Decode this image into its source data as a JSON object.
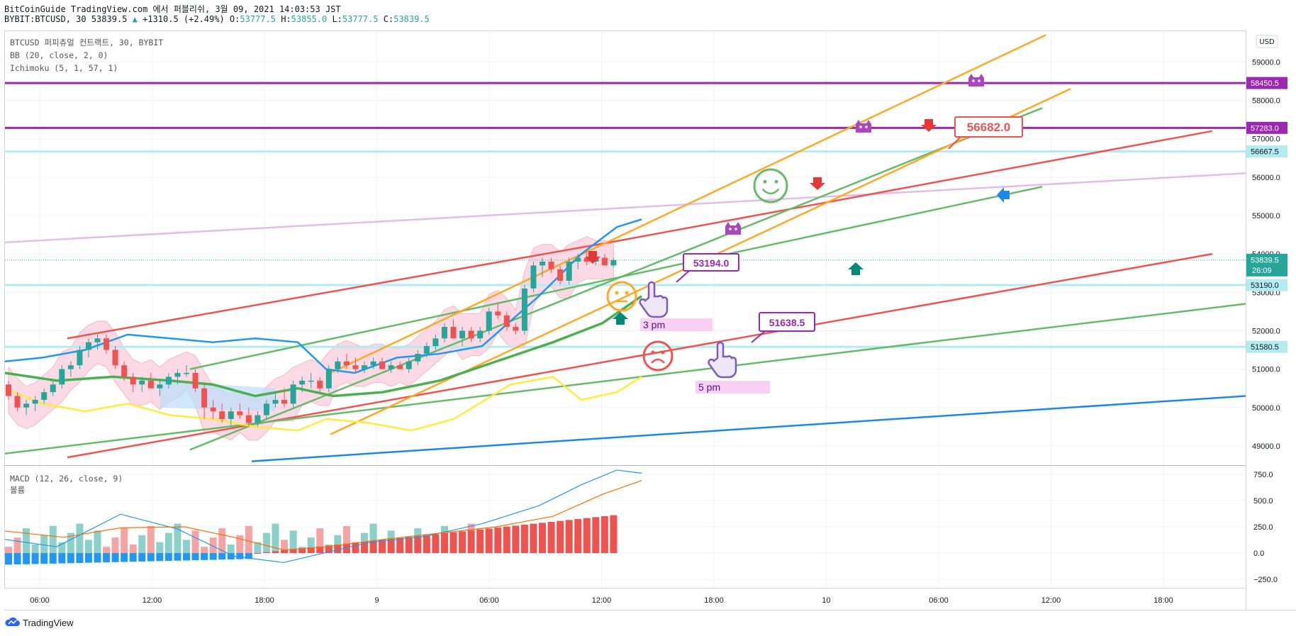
{
  "header": {
    "line1": "BitCoinGuide TradingView.com 에서 퍼블리쉬, 3월 09, 2021 14:03:53 JST",
    "line2_symbol": "BYBIT:BTCUSD, 30 53839.5",
    "line2_change": "+1310.5 (+2.49%)",
    "line2_ohlc": [
      {
        "k": "O:",
        "v": "53777.5"
      },
      {
        "k": "H:",
        "v": "53855.0"
      },
      {
        "k": "L:",
        "v": "53777.5"
      },
      {
        "k": "C:",
        "v": "53839.5"
      }
    ]
  },
  "legend": {
    "symbol": "BTCUSD 퍼피츄얼 컨트랙트, 30, BYBIT",
    "bb": "BB (20, close, 2, 0)",
    "ichimoku": "Ichimoku (5, 1, 57, 1)",
    "macd": "MACD (12, 26, close, 9)",
    "volume": "볼륨"
  },
  "currency": "USD",
  "brand": "TradingView",
  "colors": {
    "up": "#26a69a",
    "down": "#ef5350",
    "purple": "#9c27b0",
    "cyan": "#b2ebf2",
    "bb": "#2196f3",
    "orange": "#ffa726",
    "green": "#66bb6a",
    "red": "#ef5350",
    "pink": "#e1bee7",
    "blueTrend": "#1e88e5"
  },
  "chart_data": {
    "type": "line",
    "y_axis_ticks": [
      "59000.0",
      "58000.0",
      "57000.0",
      "56000.0",
      "55000.0",
      "54000.0",
      "53000.0",
      "52000.0",
      "51000.0",
      "50000.0",
      "49000.0"
    ],
    "ylim": [
      48500,
      59800
    ],
    "x_axis_ticks": [
      "06:00",
      "12:00",
      "18:00",
      "9",
      "06:00",
      "12:00",
      "18:00",
      "10",
      "06:00",
      "12:00",
      "18:00"
    ],
    "macd_ticks": [
      "750.0",
      "500.0",
      "250.0",
      "0.0",
      "−250.0"
    ],
    "macd_ylim": [
      -330,
      830
    ],
    "price_labels": [
      {
        "text": "58450.5",
        "value": 58450.5,
        "color": "#9c27b0"
      },
      {
        "text": "57283.0",
        "value": 57283.0,
        "color": "#9c27b0"
      },
      {
        "text": "56667.5",
        "value": 56667.5,
        "color": "#b2ebf2",
        "textColor": "#131722"
      },
      {
        "text": "53839.5",
        "value": 53839.5,
        "color": "#26a69a",
        "sub": "26:09"
      },
      {
        "text": "53190.0",
        "value": 53190.0,
        "color": "#b2ebf2",
        "textColor": "#131722"
      },
      {
        "text": "51580.5",
        "value": 51580.5,
        "color": "#b2ebf2",
        "textColor": "#131722"
      }
    ],
    "callouts": [
      {
        "text": "56682.0",
        "value": 56682.0,
        "color": "#ef5350"
      },
      {
        "text": "53194.0",
        "value": 53194.0,
        "color": "#9c27b0"
      },
      {
        "text": "51638.5",
        "value": 51638.5,
        "color": "#9c27b0"
      }
    ],
    "time_notes": [
      "3 pm",
      "5 pm"
    ],
    "candles_ohlc": [
      [
        50600,
        50700,
        50200,
        50300
      ],
      [
        50300,
        50400,
        49900,
        50000
      ],
      [
        50000,
        50200,
        49800,
        50100
      ],
      [
        50100,
        50300,
        49900,
        50200
      ],
      [
        50200,
        50500,
        50100,
        50400
      ],
      [
        50400,
        50700,
        50300,
        50600
      ],
      [
        50600,
        51100,
        50500,
        51000
      ],
      [
        51000,
        51200,
        50800,
        51100
      ],
      [
        51100,
        51600,
        51000,
        51500
      ],
      [
        51500,
        51800,
        51300,
        51700
      ],
      [
        51700,
        51900,
        51500,
        51800
      ],
      [
        51800,
        51900,
        51400,
        51500
      ],
      [
        51500,
        51600,
        51000,
        51100
      ],
      [
        51100,
        51200,
        50700,
        50800
      ],
      [
        50800,
        50900,
        50400,
        50600
      ],
      [
        50600,
        50800,
        50400,
        50700
      ],
      [
        50700,
        50900,
        50500,
        50500
      ],
      [
        50500,
        50700,
        50300,
        50600
      ],
      [
        50600,
        50900,
        50500,
        50800
      ],
      [
        50800,
        51000,
        50600,
        50900
      ],
      [
        50900,
        51100,
        50800,
        50900
      ],
      [
        50900,
        51000,
        50400,
        50500
      ],
      [
        50500,
        50600,
        49700,
        50000
      ],
      [
        50000,
        50200,
        49700,
        49900
      ],
      [
        49900,
        50100,
        49600,
        49700
      ],
      [
        49700,
        50000,
        49500,
        49900
      ],
      [
        49900,
        50100,
        49700,
        49800
      ],
      [
        49800,
        50000,
        49500,
        49600
      ],
      [
        49600,
        49900,
        49500,
        49800
      ],
      [
        49800,
        50200,
        49700,
        50100
      ],
      [
        50100,
        50400,
        50000,
        50200
      ],
      [
        50200,
        50500,
        50000,
        50100
      ],
      [
        50100,
        50700,
        50000,
        50600
      ],
      [
        50600,
        50800,
        50400,
        50700
      ],
      [
        50700,
        50900,
        50500,
        50700
      ],
      [
        50700,
        50800,
        50400,
        50500
      ],
      [
        50500,
        51100,
        50400,
        51000
      ],
      [
        51000,
        51300,
        50900,
        51200
      ],
      [
        51200,
        51400,
        51000,
        51100
      ],
      [
        51100,
        51300,
        50900,
        51000
      ],
      [
        51000,
        51200,
        50900,
        51100
      ],
      [
        51100,
        51300,
        51000,
        51200
      ],
      [
        51200,
        51300,
        51000,
        51000
      ],
      [
        51000,
        51200,
        50900,
        51100
      ],
      [
        51100,
        51200,
        51000,
        51000
      ],
      [
        51000,
        51300,
        50900,
        51200
      ],
      [
        51200,
        51500,
        51100,
        51400
      ],
      [
        51400,
        51700,
        51300,
        51600
      ],
      [
        51600,
        51900,
        51500,
        51800
      ],
      [
        51800,
        52200,
        51700,
        52100
      ],
      [
        52100,
        52300,
        51900,
        51800
      ],
      [
        51800,
        52100,
        51600,
        52000
      ],
      [
        52000,
        52100,
        51700,
        51800
      ],
      [
        51800,
        52100,
        51700,
        52000
      ],
      [
        52000,
        52600,
        51900,
        52500
      ],
      [
        52500,
        52700,
        52300,
        52400
      ],
      [
        52400,
        52500,
        52000,
        52100
      ],
      [
        52100,
        52200,
        51900,
        52000
      ],
      [
        52000,
        53200,
        51900,
        53100
      ],
      [
        53100,
        53800,
        53000,
        53700
      ],
      [
        53700,
        53900,
        53400,
        53800
      ],
      [
        53800,
        53900,
        53500,
        53600
      ],
      [
        53600,
        53700,
        53200,
        53300
      ],
      [
        53300,
        53900,
        53200,
        53800
      ],
      [
        53800,
        54000,
        53600,
        53900
      ],
      [
        53900,
        54100,
        53700,
        53800
      ],
      [
        53800,
        54000,
        53700,
        53900
      ],
      [
        53900,
        54000,
        53700,
        53700
      ],
      [
        53700,
        53900,
        53650,
        53840
      ]
    ]
  }
}
